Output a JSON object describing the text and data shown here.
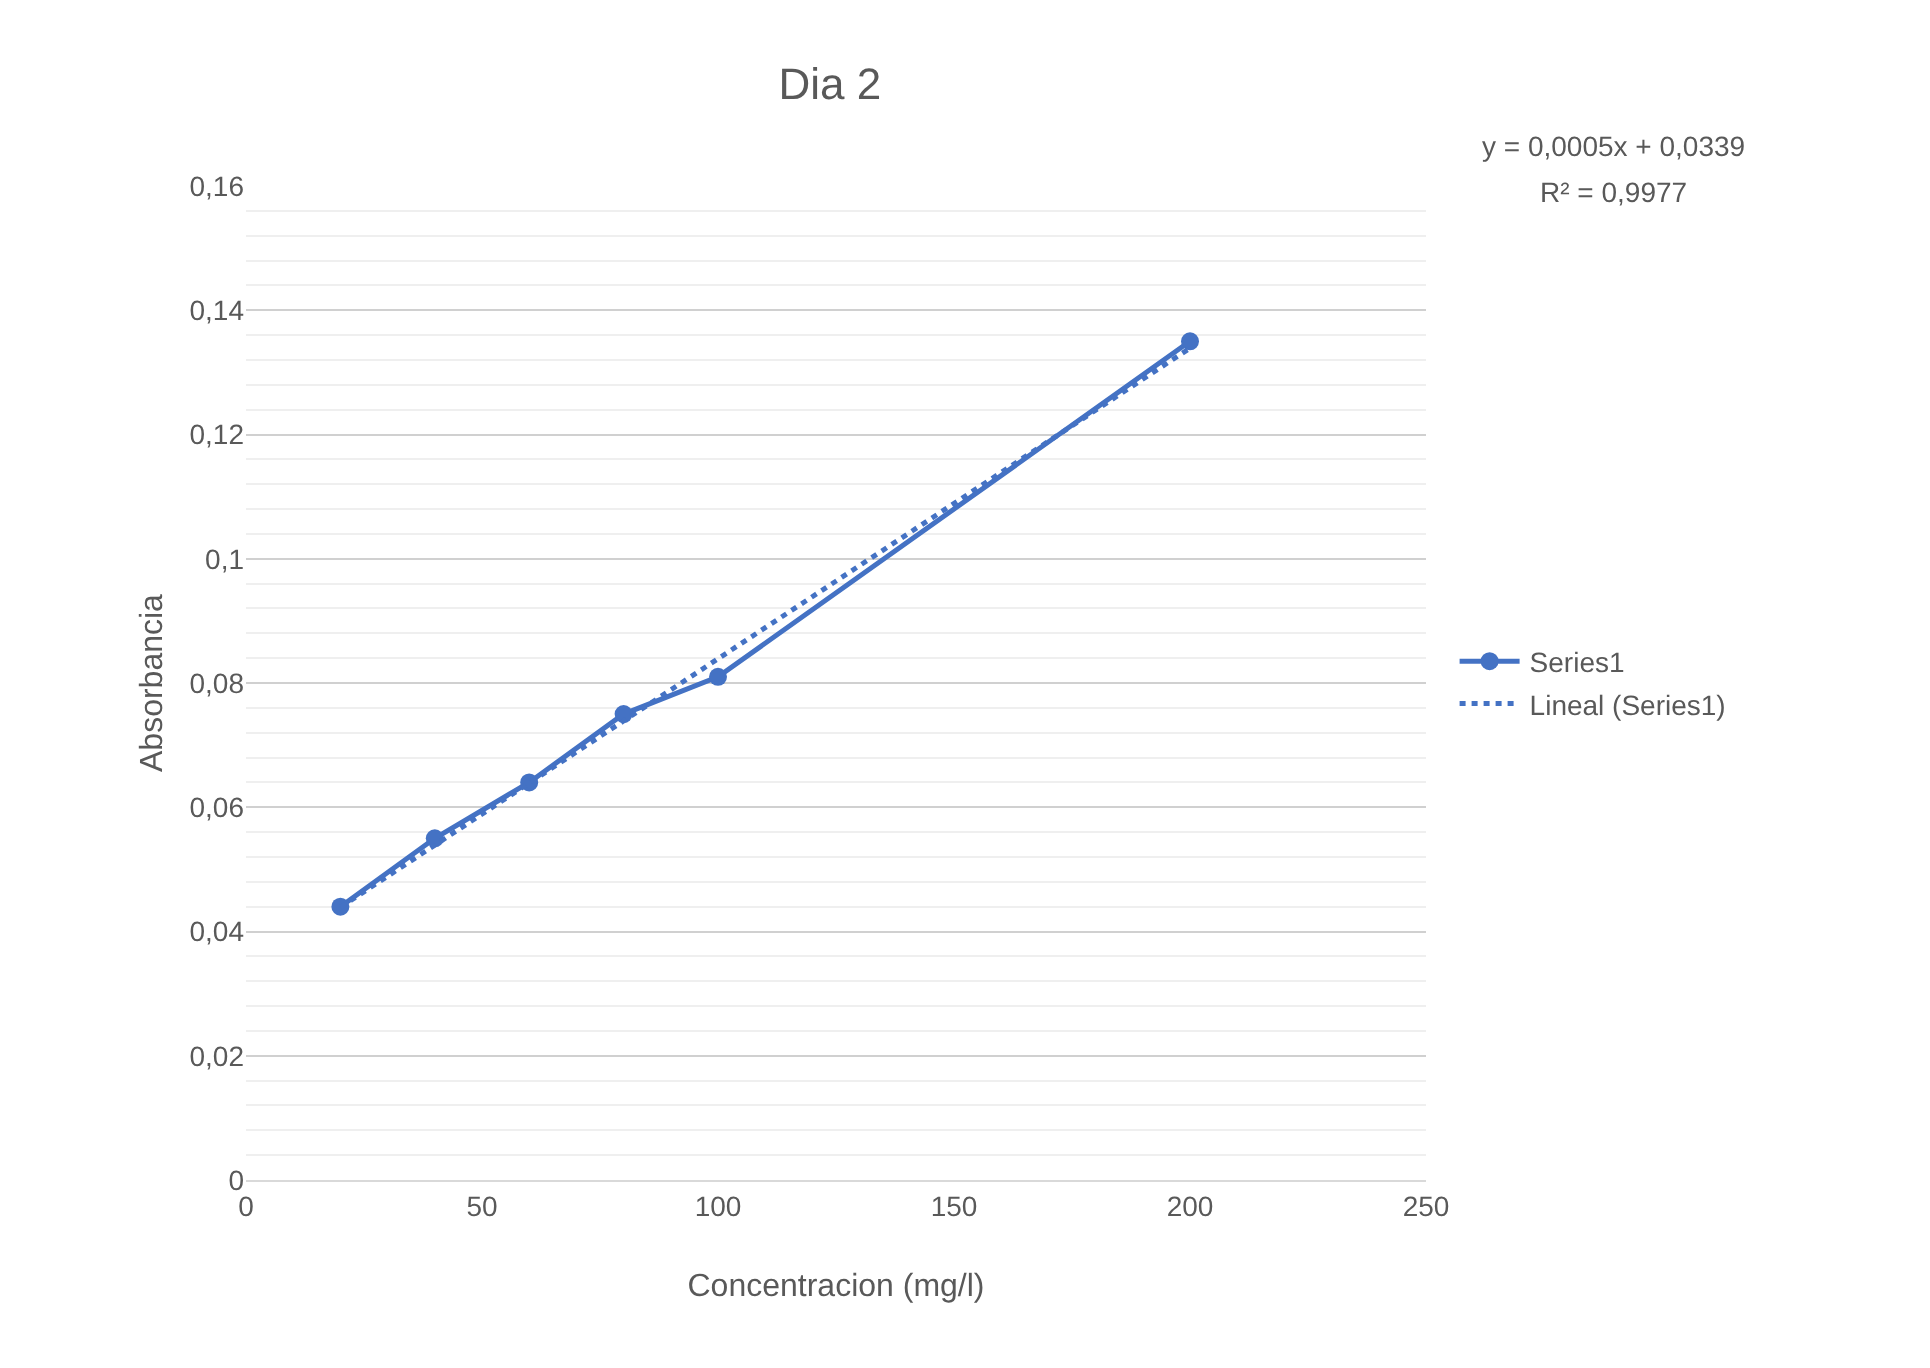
{
  "chart_data": {
    "type": "line",
    "title": "Dia 2",
    "xlabel": "Concentracion (mg/l)",
    "ylabel": "Absorbancia",
    "x": [
      20,
      40,
      60,
      80,
      100,
      200
    ],
    "series": [
      {
        "name": "Series1",
        "color": "#4472c4",
        "marker": "circle",
        "line_style": "solid",
        "values": [
          0.044,
          0.055,
          0.064,
          0.075,
          0.081,
          0.135
        ]
      },
      {
        "name": "Lineal (Series1)",
        "color": "#4472c4",
        "marker": "none",
        "line_style": "dotted",
        "x": [
          20,
          200
        ],
        "values": [
          0.0439,
          0.1339
        ]
      }
    ],
    "xlim": [
      0,
      250
    ],
    "xticks": [
      0,
      50,
      100,
      150,
      200,
      250
    ],
    "ylim": [
      0,
      0.16
    ],
    "yticks": [
      {
        "value": 0,
        "label": "0"
      },
      {
        "value": 0.02,
        "label": "0,02"
      },
      {
        "value": 0.04,
        "label": "0,04"
      },
      {
        "value": 0.06,
        "label": "0,06"
      },
      {
        "value": 0.08,
        "label": "0,08"
      },
      {
        "value": 0.1,
        "label": "0,1"
      },
      {
        "value": 0.12,
        "label": "0,12"
      },
      {
        "value": 0.14,
        "label": "0,14"
      },
      {
        "value": 0.16,
        "label": "0,16"
      }
    ],
    "grid": "y",
    "legend": "right",
    "annotations": [
      "y = 0,0005x + 0,0339",
      "R² = 0,9977"
    ]
  }
}
